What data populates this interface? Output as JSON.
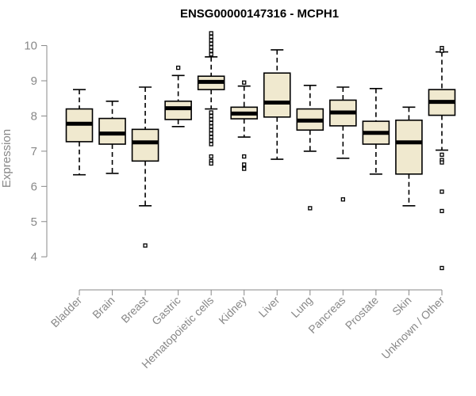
{
  "chart_data": {
    "type": "boxplot",
    "title": "ENSG00000147316 - MCPH1",
    "xlabel": "",
    "ylabel": "Expression",
    "ylim": [
      3.6,
      10.35
    ],
    "yticks": [
      4,
      5,
      6,
      7,
      8,
      9,
      10
    ],
    "grid": false,
    "legend": "none",
    "colors": {
      "box_fill": "#f0e9cf",
      "box_stroke": "#000000",
      "axis": "#888888"
    },
    "categories": [
      "Bladder",
      "Brain",
      "Breast",
      "Gastric",
      "Hematopoietic cells",
      "Kidney",
      "Liver",
      "Lung",
      "Pancreas",
      "Prostate",
      "Skin",
      "Unknown / Other"
    ],
    "boxes": [
      {
        "min": 6.33,
        "q1": 7.27,
        "median": 7.78,
        "q3": 8.2,
        "max": 8.75,
        "outliers": []
      },
      {
        "min": 6.37,
        "q1": 7.2,
        "median": 7.5,
        "q3": 7.93,
        "max": 8.42,
        "outliers": []
      },
      {
        "min": 5.45,
        "q1": 6.72,
        "median": 7.25,
        "q3": 7.62,
        "max": 8.82,
        "outliers": [
          4.32
        ]
      },
      {
        "min": 7.7,
        "q1": 7.9,
        "median": 8.22,
        "q3": 8.42,
        "max": 9.15,
        "outliers": [
          9.37
        ]
      },
      {
        "min": 8.2,
        "q1": 8.75,
        "median": 8.97,
        "q3": 9.13,
        "max": 9.68,
        "outliers": [
          10.35,
          10.25,
          10.15,
          10.05,
          9.95,
          9.85,
          9.75,
          8.1,
          8.0,
          7.9,
          7.8,
          7.7,
          7.6,
          7.5,
          7.4,
          7.3,
          7.2,
          6.85,
          6.72,
          6.65
        ]
      },
      {
        "min": 7.4,
        "q1": 7.92,
        "median": 8.07,
        "q3": 8.25,
        "max": 8.85,
        "outliers": [
          8.95,
          6.85,
          6.62,
          6.5
        ]
      },
      {
        "min": 6.77,
        "q1": 7.97,
        "median": 8.38,
        "q3": 9.22,
        "max": 9.88,
        "outliers": []
      },
      {
        "min": 7.0,
        "q1": 7.6,
        "median": 7.87,
        "q3": 8.2,
        "max": 8.87,
        "outliers": [
          5.38
        ]
      },
      {
        "min": 6.8,
        "q1": 7.72,
        "median": 8.1,
        "q3": 8.45,
        "max": 8.82,
        "outliers": [
          5.63
        ]
      },
      {
        "min": 6.35,
        "q1": 7.2,
        "median": 7.52,
        "q3": 7.85,
        "max": 8.78,
        "outliers": []
      },
      {
        "min": 5.45,
        "q1": 6.35,
        "median": 7.25,
        "q3": 7.88,
        "max": 8.25,
        "outliers": []
      },
      {
        "min": 7.03,
        "q1": 8.02,
        "median": 8.4,
        "q3": 8.75,
        "max": 9.82,
        "outliers": [
          9.93,
          9.85,
          6.9,
          6.75,
          6.68,
          5.85,
          5.3,
          3.68
        ]
      }
    ]
  }
}
